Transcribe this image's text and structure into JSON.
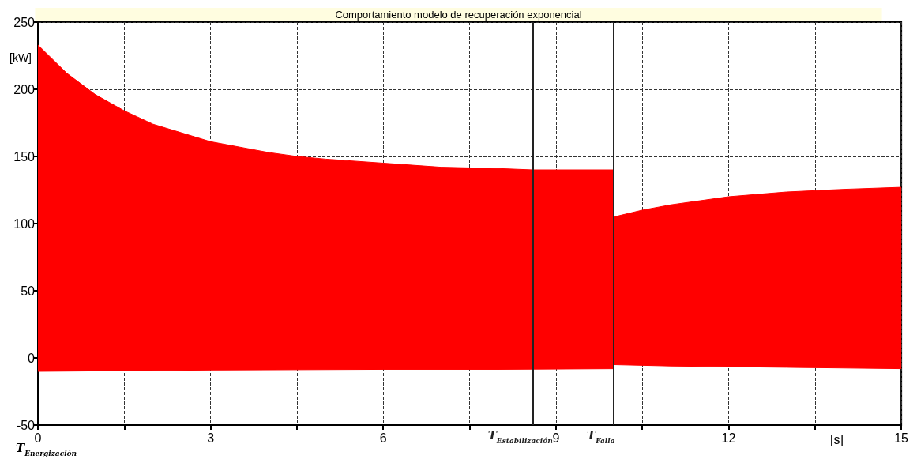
{
  "chart_data": {
    "type": "area",
    "title": "Comportamiento modelo de recuperación exponencial",
    "xlabel": "[s]",
    "ylabel": "[kW]",
    "series": [
      {
        "color": "#ff0000",
        "x": [
          0,
          0.5,
          1,
          1.5,
          2,
          3,
          4,
          4.5,
          5,
          6,
          7,
          8,
          8.6,
          10,
          10.01,
          10.5,
          11,
          12,
          13,
          14,
          15
        ],
        "values": [
          233,
          212,
          196,
          184,
          174,
          161,
          153,
          150,
          148,
          145,
          142,
          141,
          140,
          140,
          105,
          110,
          114,
          120,
          123.5,
          125.5,
          127
        ]
      },
      {
        "color": "#ff0000",
        "x": [
          0,
          3,
          6,
          8,
          10,
          10.01,
          11,
          12,
          13,
          14,
          15
        ],
        "values": [
          -10,
          -9,
          -8.5,
          -8.5,
          -8,
          -5,
          -6,
          -6.5,
          -7,
          -7.5,
          -8
        ]
      }
    ],
    "xlim": [
      0,
      15
    ],
    "xticks": [
      0,
      {
        "value": 1.5,
        "label": null
      },
      3,
      {
        "value": 4.5,
        "label": null
      },
      6,
      {
        "value": 7.5,
        "label": null
      },
      9,
      {
        "value": 10.5,
        "label": null
      },
      12,
      {
        "value": 13.5,
        "label": null
      },
      15
    ],
    "ylim": [
      -50,
      250
    ],
    "yticks": [
      -50,
      0,
      50,
      100,
      150,
      200,
      250
    ],
    "grid": true,
    "ref_lines": [
      {
        "axis": "x",
        "value": 8.6,
        "label": "T$_{Estabilización}$",
        "color": "#222222"
      },
      {
        "axis": "x",
        "value": 10,
        "label": "T$_{Falla}$",
        "color": "#222222"
      }
    ],
    "annotations": [
      "T$_{Energización}$"
    ]
  }
}
